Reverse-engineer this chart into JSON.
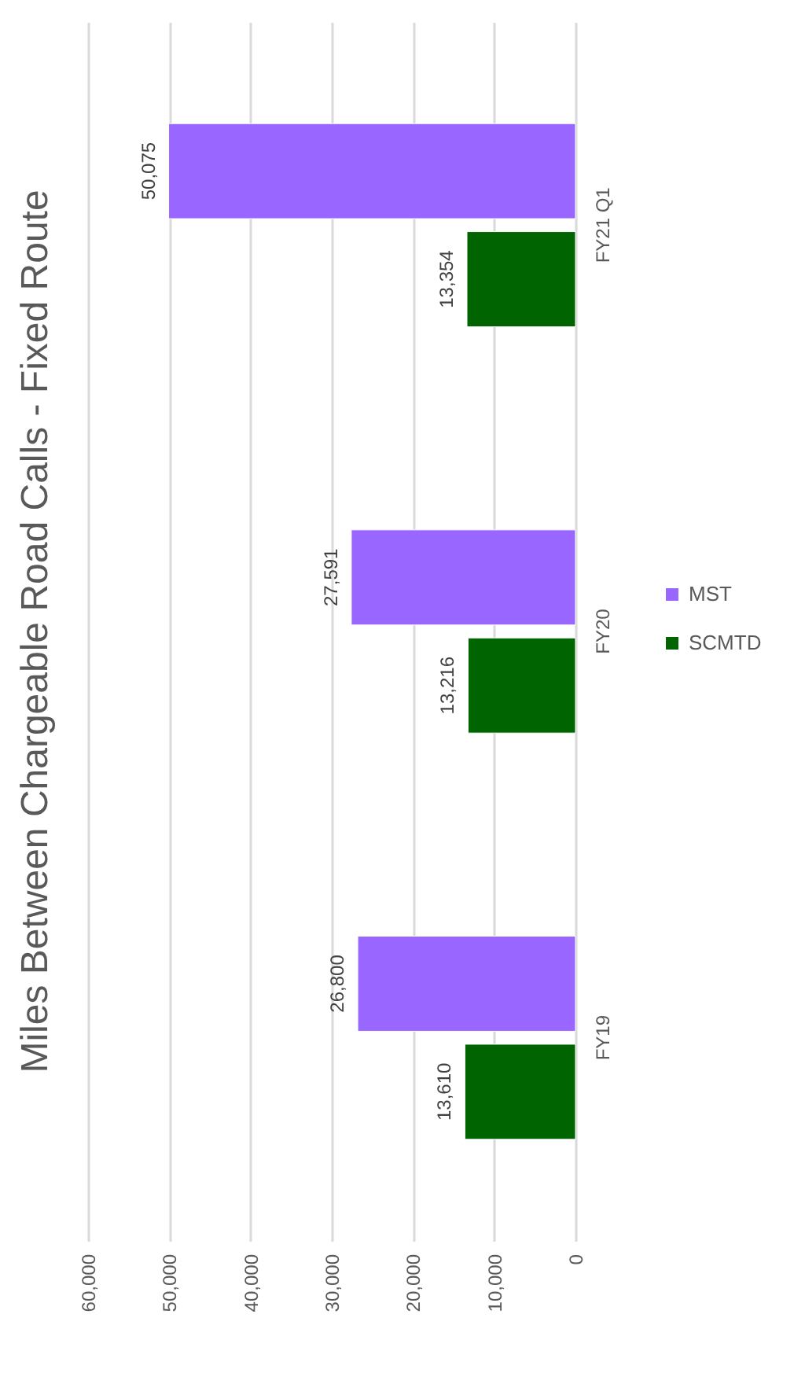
{
  "chart_data": {
    "type": "bar",
    "orientation": "horizontal",
    "title": "Miles Between Chargeable Road Calls - Fixed Route",
    "categories": [
      "FY21 Q1",
      "FY20",
      "FY19"
    ],
    "series": [
      {
        "name": "MST",
        "color": "#9966ff",
        "values": [
          50075,
          27591,
          26800
        ],
        "value_labels": [
          "50,075",
          "27,591",
          "26,800"
        ]
      },
      {
        "name": "SCMTD",
        "color": "#006400",
        "values": [
          13354,
          13216,
          13610
        ],
        "value_labels": [
          "13,354",
          "13,216",
          "13,610"
        ]
      }
    ],
    "xlim": [
      60000,
      0
    ],
    "xticks": [
      {
        "value": 60000,
        "label": "60,000"
      },
      {
        "value": 50000,
        "label": "50,000"
      },
      {
        "value": 40000,
        "label": "40,000"
      },
      {
        "value": 30000,
        "label": "30,000"
      },
      {
        "value": 20000,
        "label": "20,000"
      },
      {
        "value": 10000,
        "label": "10,000"
      },
      0
    ],
    "grid": "x",
    "legend": "right"
  }
}
